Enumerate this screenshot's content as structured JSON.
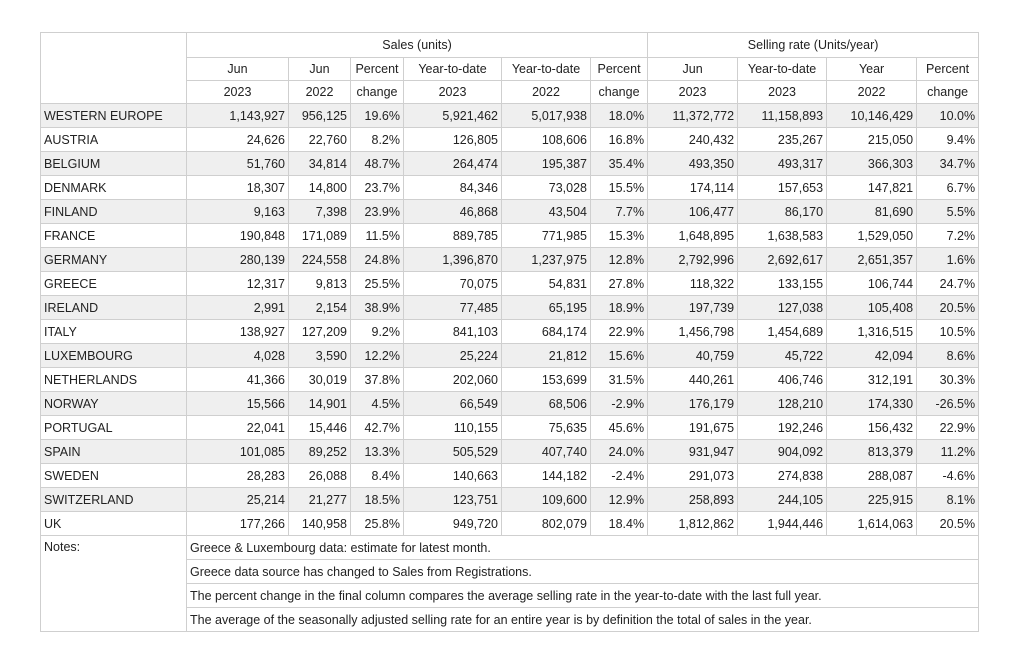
{
  "header": {
    "group_sales": "Sales (units)",
    "group_rate": "Selling rate (Units/year)",
    "columns": [
      [
        "Jun",
        "2023"
      ],
      [
        "Jun",
        "2022"
      ],
      [
        "Percent",
        "change"
      ],
      [
        "Year-to-date",
        "2023"
      ],
      [
        "Year-to-date",
        "2022"
      ],
      [
        "Percent",
        "change"
      ],
      [
        "Jun",
        "2023"
      ],
      [
        "Year-to-date",
        "2023"
      ],
      [
        "Year",
        "2022"
      ],
      [
        "Percent",
        "change"
      ]
    ]
  },
  "rows": [
    [
      "WESTERN EUROPE",
      "1,143,927",
      "956,125",
      "19.6%",
      "5,921,462",
      "5,017,938",
      "18.0%",
      "11,372,772",
      "11,158,893",
      "10,146,429",
      "10.0%"
    ],
    [
      "AUSTRIA",
      "24,626",
      "22,760",
      "8.2%",
      "126,805",
      "108,606",
      "16.8%",
      "240,432",
      "235,267",
      "215,050",
      "9.4%"
    ],
    [
      "BELGIUM",
      "51,760",
      "34,814",
      "48.7%",
      "264,474",
      "195,387",
      "35.4%",
      "493,350",
      "493,317",
      "366,303",
      "34.7%"
    ],
    [
      "DENMARK",
      "18,307",
      "14,800",
      "23.7%",
      "84,346",
      "73,028",
      "15.5%",
      "174,114",
      "157,653",
      "147,821",
      "6.7%"
    ],
    [
      "FINLAND",
      "9,163",
      "7,398",
      "23.9%",
      "46,868",
      "43,504",
      "7.7%",
      "106,477",
      "86,170",
      "81,690",
      "5.5%"
    ],
    [
      "FRANCE",
      "190,848",
      "171,089",
      "11.5%",
      "889,785",
      "771,985",
      "15.3%",
      "1,648,895",
      "1,638,583",
      "1,529,050",
      "7.2%"
    ],
    [
      "GERMANY",
      "280,139",
      "224,558",
      "24.8%",
      "1,396,870",
      "1,237,975",
      "12.8%",
      "2,792,996",
      "2,692,617",
      "2,651,357",
      "1.6%"
    ],
    [
      "GREECE",
      "12,317",
      "9,813",
      "25.5%",
      "70,075",
      "54,831",
      "27.8%",
      "118,322",
      "133,155",
      "106,744",
      "24.7%"
    ],
    [
      "IRELAND",
      "2,991",
      "2,154",
      "38.9%",
      "77,485",
      "65,195",
      "18.9%",
      "197,739",
      "127,038",
      "105,408",
      "20.5%"
    ],
    [
      "ITALY",
      "138,927",
      "127,209",
      "9.2%",
      "841,103",
      "684,174",
      "22.9%",
      "1,456,798",
      "1,454,689",
      "1,316,515",
      "10.5%"
    ],
    [
      "LUXEMBOURG",
      "4,028",
      "3,590",
      "12.2%",
      "25,224",
      "21,812",
      "15.6%",
      "40,759",
      "45,722",
      "42,094",
      "8.6%"
    ],
    [
      "NETHERLANDS",
      "41,366",
      "30,019",
      "37.8%",
      "202,060",
      "153,699",
      "31.5%",
      "440,261",
      "406,746",
      "312,191",
      "30.3%"
    ],
    [
      "NORWAY",
      "15,566",
      "14,901",
      "4.5%",
      "66,549",
      "68,506",
      "-2.9%",
      "176,179",
      "128,210",
      "174,330",
      "-26.5%"
    ],
    [
      "PORTUGAL",
      "22,041",
      "15,446",
      "42.7%",
      "110,155",
      "75,635",
      "45.6%",
      "191,675",
      "192,246",
      "156,432",
      "22.9%"
    ],
    [
      "SPAIN",
      "101,085",
      "89,252",
      "13.3%",
      "505,529",
      "407,740",
      "24.0%",
      "931,947",
      "904,092",
      "813,379",
      "11.2%"
    ],
    [
      "SWEDEN",
      "28,283",
      "26,088",
      "8.4%",
      "140,663",
      "144,182",
      "-2.4%",
      "291,073",
      "274,838",
      "288,087",
      "-4.6%"
    ],
    [
      "SWITZERLAND",
      "25,214",
      "21,277",
      "18.5%",
      "123,751",
      "109,600",
      "12.9%",
      "258,893",
      "244,105",
      "225,915",
      "8.1%"
    ],
    [
      "UK",
      "177,266",
      "140,958",
      "25.8%",
      "949,720",
      "802,079",
      "18.4%",
      "1,812,862",
      "1,944,446",
      "1,614,063",
      "20.5%"
    ]
  ],
  "notes": {
    "label": "Notes:",
    "lines": [
      "Greece & Luxembourg data: estimate for latest month.",
      "Greece data source has changed to Sales from Registrations.",
      "The percent change in the final column compares the average selling rate in the year-to-date with the last full year.",
      "The average of the seasonally adjusted selling rate for an entire year is by definition the total of sales in the year."
    ]
  }
}
